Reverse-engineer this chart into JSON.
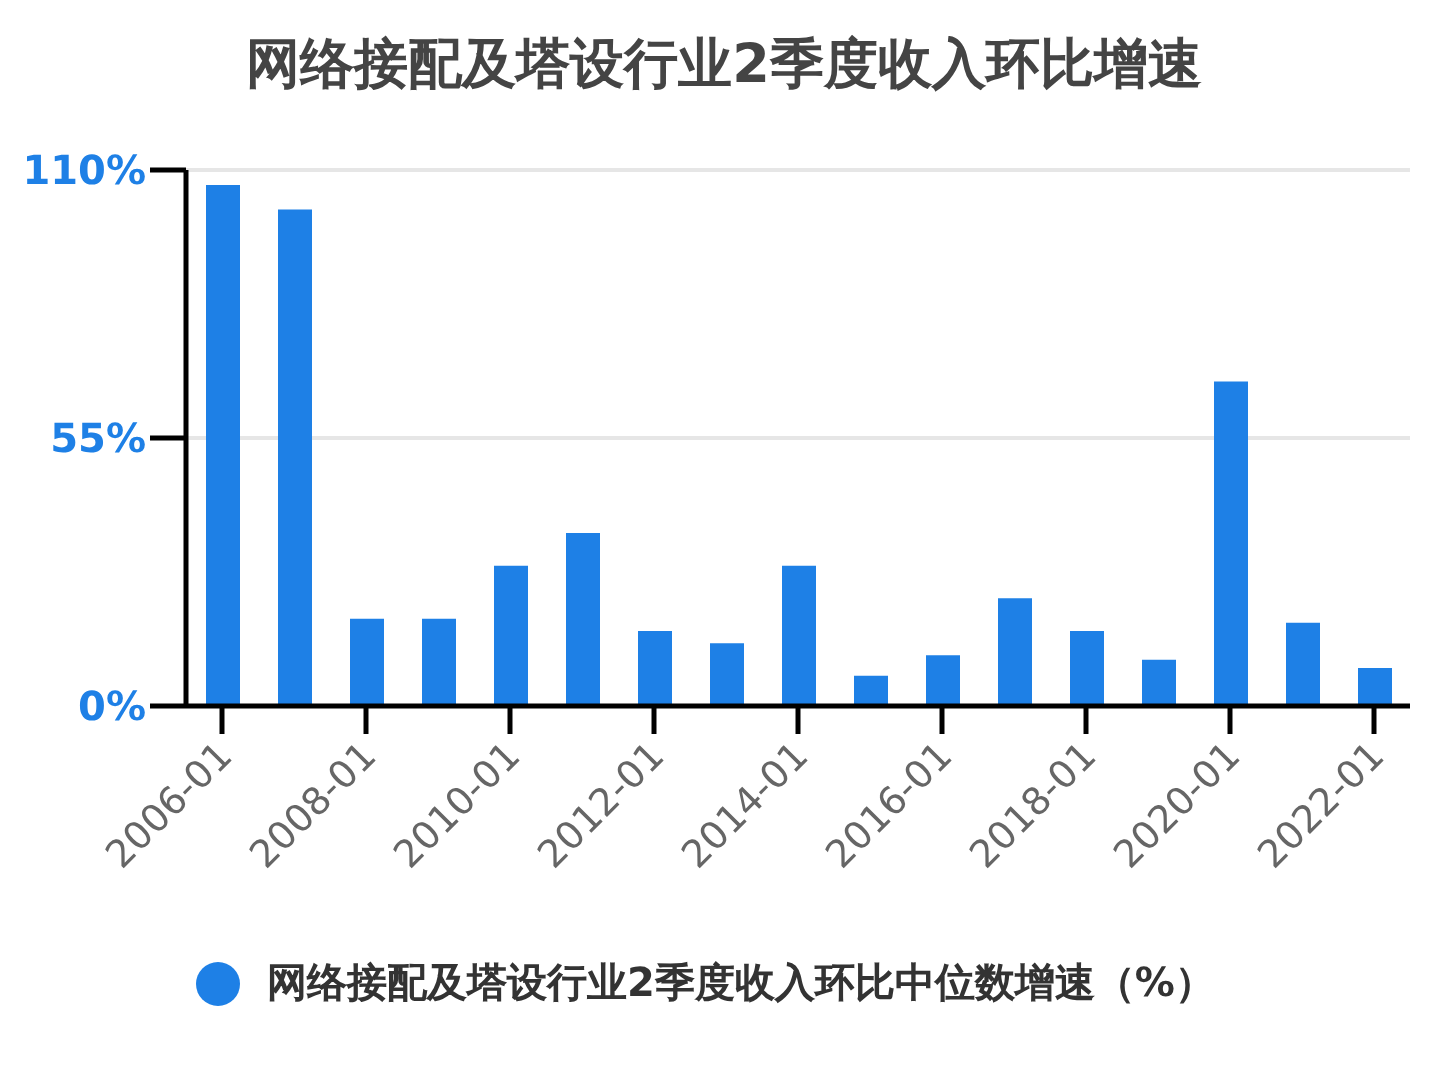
{
  "chart_data": {
    "type": "bar",
    "title": "网络接配及塔设行业2季度收入环比增速",
    "categories": [
      "2006-01",
      null,
      "2008-01",
      null,
      "2010-01",
      null,
      "2012-01",
      null,
      "2014-01",
      null,
      "2016-01",
      null,
      "2018-01",
      null,
      "2020-01",
      null,
      "2022-01"
    ],
    "series": [
      {
        "name": "网络接配及塔设行业2季度收入环比中位数增速（%）",
        "color": "#1e80e6",
        "values": [
          106.9,
          101.9,
          17.9,
          17.9,
          28.8,
          35.5,
          15.4,
          12.9,
          28.8,
          6.2,
          10.4,
          22.1,
          15.4,
          9.5,
          66.6,
          17.1,
          7.8
        ]
      }
    ],
    "ylim": [
      0,
      110
    ],
    "yticks": [
      {
        "value": 0,
        "label": "0%"
      },
      {
        "value": 55,
        "label": "55%"
      },
      {
        "value": 110,
        "label": "110%"
      }
    ],
    "grid": "y",
    "legend": "bottom",
    "marker": "circle"
  }
}
